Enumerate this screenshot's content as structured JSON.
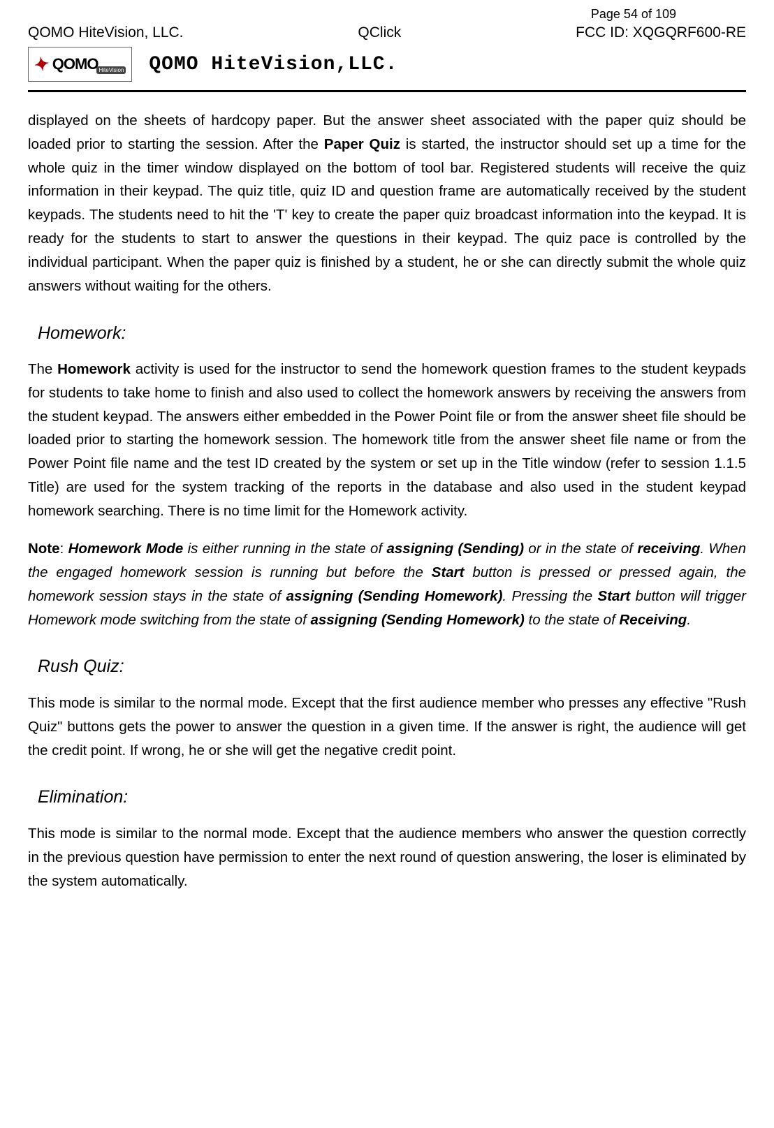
{
  "header": {
    "page_label": "Page 54 of 109",
    "company": "QOMO HiteVision, LLC.",
    "product": "QClick",
    "fcc": "FCC ID: XQGQRF600-RE",
    "logo_main": "QOMO",
    "logo_sub": "HiteVision",
    "brand_title": "QOMO HiteVision,LLC."
  },
  "para_intro_a": "displayed on the sheets of hardcopy paper. But the answer sheet associated with the paper quiz should be loaded prior to starting the session. After the ",
  "para_intro_b": "Paper Quiz",
  "para_intro_c": " is started, the instructor should set up a time for the whole quiz in the timer window displayed on the bottom of tool bar. Registered students will receive the quiz information in their keypad. The quiz title, quiz ID and question frame are automatically received by the student keypads. The students need to hit the 'T' key to create the paper quiz broadcast information into the keypad. It is ready for the students to start to answer the questions in their keypad. The quiz pace is controlled by the individual participant. When the paper quiz is finished by a student, he or she can directly submit the whole quiz answers without waiting for the others.",
  "homework_heading": "Homework:",
  "homework_p_a": "The ",
  "homework_p_b": "Homework",
  "homework_p_c": " activity is used for the instructor to send the homework question frames to the student keypads for students to take home to finish and also used to collect the homework answers by receiving the answers from the student keypad. The answers either embedded in the Power Point file or from the answer sheet file should be loaded prior to starting the homework session. The homework title from the answer sheet file name or from the Power Point file name and the test ID created by the system or set up in the Title window (refer to session 1.1.5 Title) are used for the system tracking of the reports in the database and also used in the student keypad homework searching. There is no time limit for the Homework activity.",
  "note_label": "Note",
  "note_colon": ": ",
  "note_a": "Homework Mode",
  "note_b": " is either running in the state of ",
  "note_c": "assigning (Sending)",
  "note_d": " or in the state of ",
  "note_e": "receiving",
  "note_f": ". When the engaged homework session is running but before the ",
  "note_g": "Start",
  "note_h": " button is pressed or pressed again, the homework session stays in the state of ",
  "note_i": "assigning (Sending Homework)",
  "note_j": ". Pressing the ",
  "note_k": "Start",
  "note_l": " button will trigger Homework mode switching from the state of ",
  "note_m": "assigning (Sending Homework)",
  "note_n": " to the state of ",
  "note_o": "Receiving",
  "note_p": ".",
  "rush_heading": "Rush Quiz:",
  "rush_body": "This mode is similar to the normal mode. Except that the first audience member who presses   any effective \"Rush Quiz\" buttons gets the power to answer the question in a given time. If the answer is right, the audience will get the credit point. If wrong, he or she will get the negative credit point.",
  "elim_heading": "Elimination:",
  "elim_body": "This mode is similar to the normal mode. Except that the audience members who answer the question correctly in the previous question have permission to enter the next round of question answering, the loser is eliminated by the system automatically."
}
